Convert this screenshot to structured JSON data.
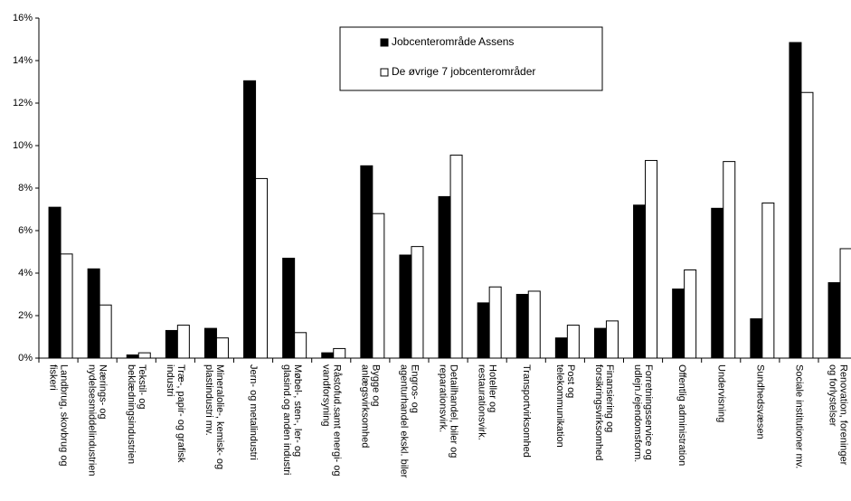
{
  "chart_data": {
    "type": "bar",
    "categories": [
      "Landbrug, skovbrug og\nfiskeri",
      "Nærings- og\nnydelsesmiddelindustrien",
      "Tekstil- og\nbeklædningsindustrien",
      "Træ-, papir- og grafisk\nindustri",
      "Mineralolie-, kemisk- og\nplastindustri mv.",
      "Jern- og metalindustri",
      "Møbel-, sten-, ler- og\nglasind.og anden industri",
      "Råstofud.samt energi- og\nvandforsyning",
      "Bygge og\nanlægsvirksomhed",
      "Engros- og\nagenturhandel ekskl. biler",
      "Detailhandel, biler og\nreparationsvirk.",
      "Hoteller og\nrestaurationsvirk.",
      "Transportvirksomhed",
      "Post og\ntelekommunikation",
      "Finansiering og\nforsikringsvirksomhed",
      "Forretningsservice og\nudlejn./ejendomsform.",
      "Offentlig administration",
      "Undervisning",
      "Sundhedsvæsen",
      "Sociale institutioner mv.",
      "Renovation, foreninger\nog forlystelser"
    ],
    "series": [
      {
        "name": "Jobcenterområde Assens",
        "color": "#000000",
        "values": [
          7.1,
          4.2,
          0.15,
          1.3,
          1.4,
          13.05,
          4.7,
          0.25,
          9.05,
          4.85,
          7.6,
          2.6,
          3.0,
          0.95,
          1.4,
          7.2,
          3.25,
          7.05,
          1.85,
          14.85,
          3.55
        ]
      },
      {
        "name": "De øvrige 7 jobcenterområder",
        "color": "#ffffff",
        "values": [
          4.9,
          2.5,
          0.25,
          1.55,
          0.95,
          8.45,
          1.2,
          0.45,
          6.8,
          5.25,
          9.55,
          3.35,
          3.15,
          1.55,
          1.75,
          9.3,
          4.15,
          9.25,
          7.3,
          12.5,
          5.15
        ]
      }
    ],
    "ylim": [
      0,
      16
    ],
    "yticks": [
      {
        "value": 0,
        "label": "0%"
      },
      {
        "value": 2,
        "label": "2%"
      },
      {
        "value": 4,
        "label": "4%"
      },
      {
        "value": 6,
        "label": "6%"
      },
      {
        "value": 8,
        "label": "8%"
      },
      {
        "value": 10,
        "label": "10%"
      },
      {
        "value": 12,
        "label": "12%"
      },
      {
        "value": 14,
        "label": "14%"
      },
      {
        "value": 16,
        "label": "16%"
      }
    ],
    "grid": false,
    "legend": "top"
  }
}
